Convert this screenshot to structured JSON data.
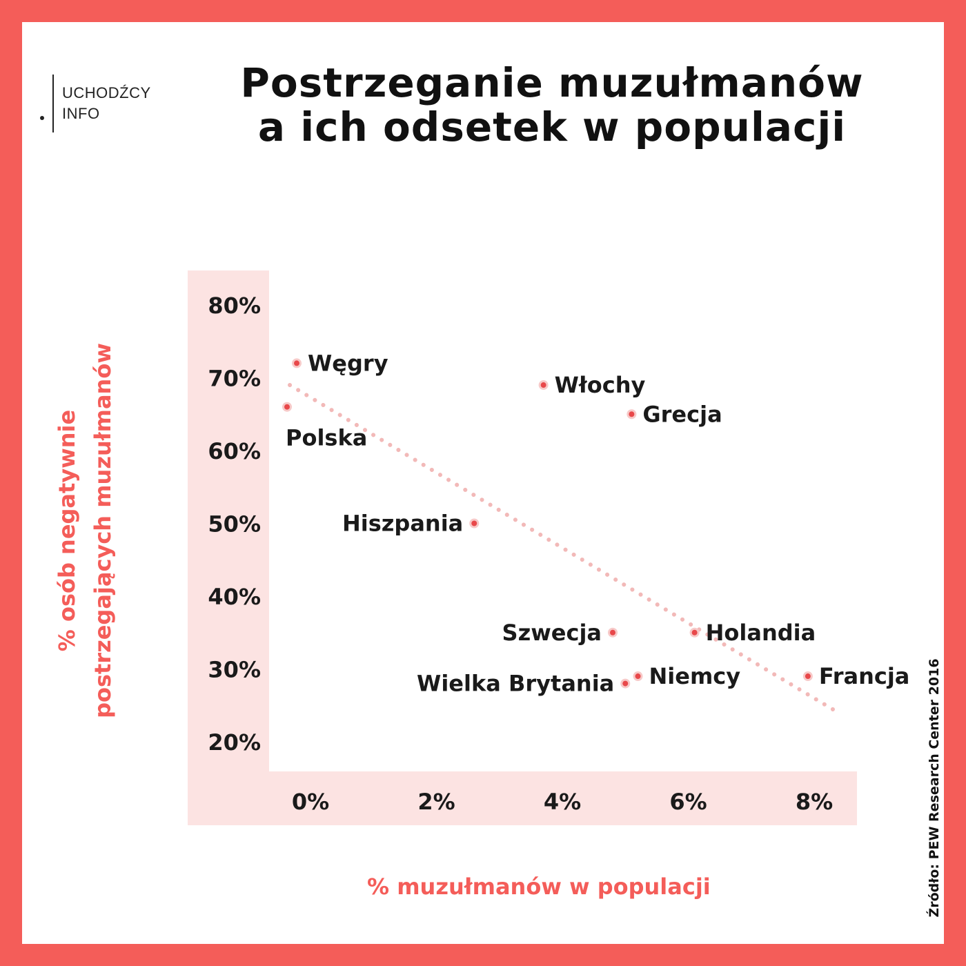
{
  "logo": {
    "line1": "UCHODŹCY",
    "line2": "INFO"
  },
  "title_lines": [
    "Postrzeganie muzułmanów",
    "a ich odsetek w populacji"
  ],
  "source": "Źródło: PEW Research Center 2016",
  "colors": {
    "frame": "#f45d59",
    "axis_band": "#fce3e2",
    "point": "#e8484a",
    "trend": "#f2b9b8",
    "highlight": "#f45d59"
  },
  "chart_data": {
    "type": "scatter",
    "title": "Postrzeganie muzułmanów a ich odsetek w populacji",
    "xlabel": "%  muzułmanów w populacji",
    "ylabel_lines": [
      "%  osób negatywnie",
      "postrzegających muzułmanów"
    ],
    "xlim": [
      0,
      8
    ],
    "ylim": [
      20,
      80
    ],
    "xticks": [
      0,
      2,
      4,
      6,
      8
    ],
    "xtick_labels": [
      "0%",
      "2%",
      "4%",
      "6%",
      "8%"
    ],
    "yticks": [
      80,
      70,
      60,
      50,
      40,
      30,
      20
    ],
    "ytick_labels": [
      "80%",
      "70%",
      "60%",
      "50%",
      "40%",
      "30%",
      "20%"
    ],
    "grid": false,
    "points": [
      {
        "label": "Węgry",
        "x": 0.1,
        "y": 72,
        "side": "right",
        "highlight": false
      },
      {
        "label": "Polska",
        "x": 0.1,
        "y": 66,
        "side": "below",
        "highlight": true
      },
      {
        "label": "Włochy",
        "x": 3.7,
        "y": 69,
        "side": "right",
        "highlight": false
      },
      {
        "label": "Grecja",
        "x": 5.1,
        "y": 65,
        "side": "right",
        "highlight": false
      },
      {
        "label": "Hiszpania",
        "x": 2.6,
        "y": 50,
        "side": "left",
        "highlight": false
      },
      {
        "label": "Szwecja",
        "x": 4.8,
        "y": 35,
        "side": "left",
        "highlight": false
      },
      {
        "label": "Holandia",
        "x": 6.1,
        "y": 35,
        "side": "right",
        "highlight": false
      },
      {
        "label": "Wielka Brytania",
        "x": 5.0,
        "y": 28,
        "side": "left",
        "highlight": false
      },
      {
        "label": "Niemcy",
        "x": 5.2,
        "y": 29,
        "side": "right",
        "highlight": false
      },
      {
        "label": "Francja",
        "x": 7.9,
        "y": 29,
        "side": "right",
        "highlight": false
      }
    ],
    "trendline": {
      "style": "dotted",
      "from": {
        "x": 0.1,
        "y": 69
      },
      "to": {
        "x": 8.5,
        "y": 24
      }
    }
  }
}
